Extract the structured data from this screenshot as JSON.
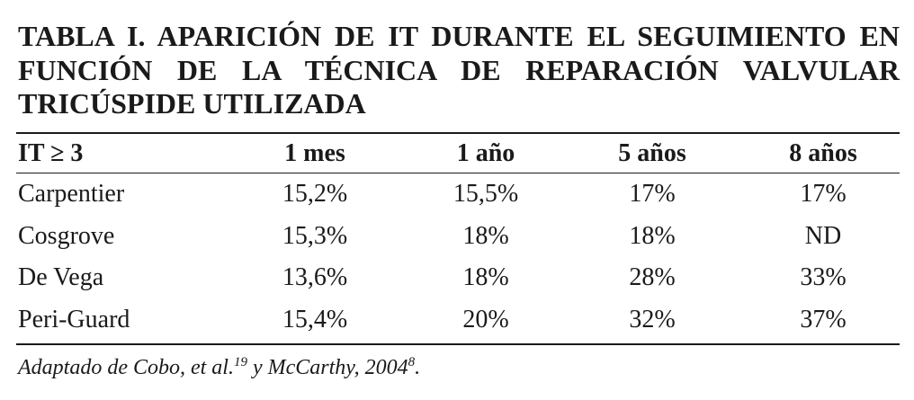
{
  "title": {
    "lines": [
      "TABLA I. APARICIÓN DE IT DURANTE EL SEGUIMIENTO EN",
      "FUNCIÓN DE LA TÉCNICA DE REPARACIÓN VALVULAR",
      "TRICÚSPIDE UTILIZADA"
    ]
  },
  "table": {
    "header": [
      "IT ≥ 3",
      "1 mes",
      "1 año",
      "5 años",
      "8 años"
    ],
    "rows": [
      [
        "Carpentier",
        "15,2%",
        "15,5%",
        "17%",
        "17%"
      ],
      [
        "Cosgrove",
        "15,3%",
        "18%",
        "18%",
        "ND"
      ],
      [
        "De Vega",
        "13,6%",
        "18%",
        "28%",
        "33%"
      ],
      [
        "Peri-Guard",
        "15,4%",
        "20%",
        "32%",
        "37%"
      ]
    ]
  },
  "footnote": {
    "parts": [
      "Adaptado de Cobo, et al.",
      "19",
      " y McCarthy, 2004",
      "8",
      "."
    ]
  }
}
